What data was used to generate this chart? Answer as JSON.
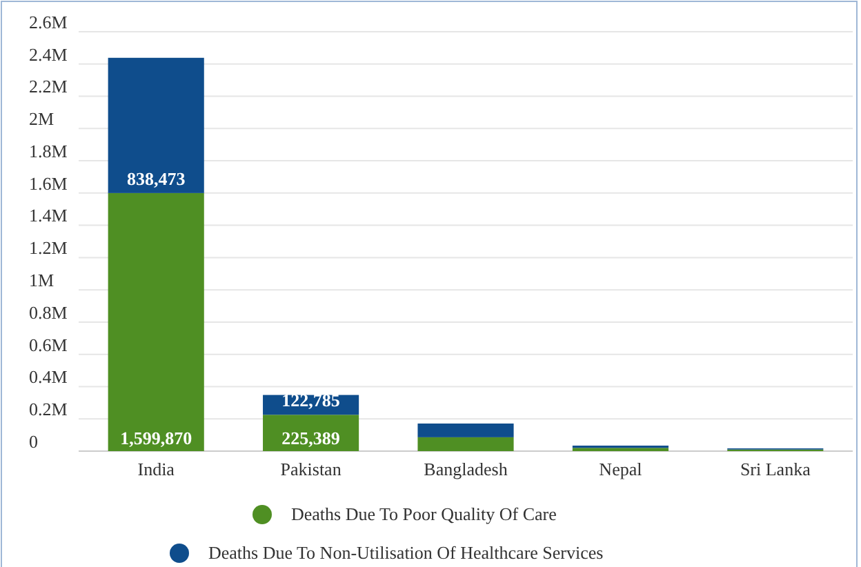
{
  "chart_data": {
    "type": "bar",
    "stacked": true,
    "categories": [
      "India",
      "Pakistan",
      "Bangladesh",
      "Nepal",
      "Sri Lanka"
    ],
    "series": [
      {
        "name": "Deaths Due To Poor Quality Of Care",
        "color": "#4f8f23",
        "values": [
          1599870,
          225389,
          86000,
          20000,
          10000
        ],
        "value_labels": [
          "1,599,870",
          "225,389",
          null,
          null,
          null
        ]
      },
      {
        "name": "Deaths Due To Non-Utilisation Of Healthcare Services",
        "color": "#0f4d8c",
        "values": [
          838473,
          122785,
          85000,
          14000,
          7000
        ],
        "value_labels": [
          "838,473",
          "122,785",
          null,
          null,
          null
        ]
      }
    ],
    "ylim": [
      0,
      2600000
    ],
    "yticks": [
      {
        "value": 0,
        "label": "0"
      },
      {
        "value": 200000,
        "label": "0.2M"
      },
      {
        "value": 400000,
        "label": "0.4M"
      },
      {
        "value": 600000,
        "label": "0.6M"
      },
      {
        "value": 800000,
        "label": "0.8M"
      },
      {
        "value": 1000000,
        "label": "1M"
      },
      {
        "value": 1200000,
        "label": "1.2M"
      },
      {
        "value": 1400000,
        "label": "1.4M"
      },
      {
        "value": 1600000,
        "label": "1.6M"
      },
      {
        "value": 1800000,
        "label": "1.8M"
      },
      {
        "value": 2000000,
        "label": "2M"
      },
      {
        "value": 2200000,
        "label": "2.2M"
      },
      {
        "value": 2400000,
        "label": "2.4M"
      },
      {
        "value": 2600000,
        "label": "2.6M"
      }
    ],
    "grid": "y",
    "legend": "bottom",
    "marker": "circle"
  }
}
